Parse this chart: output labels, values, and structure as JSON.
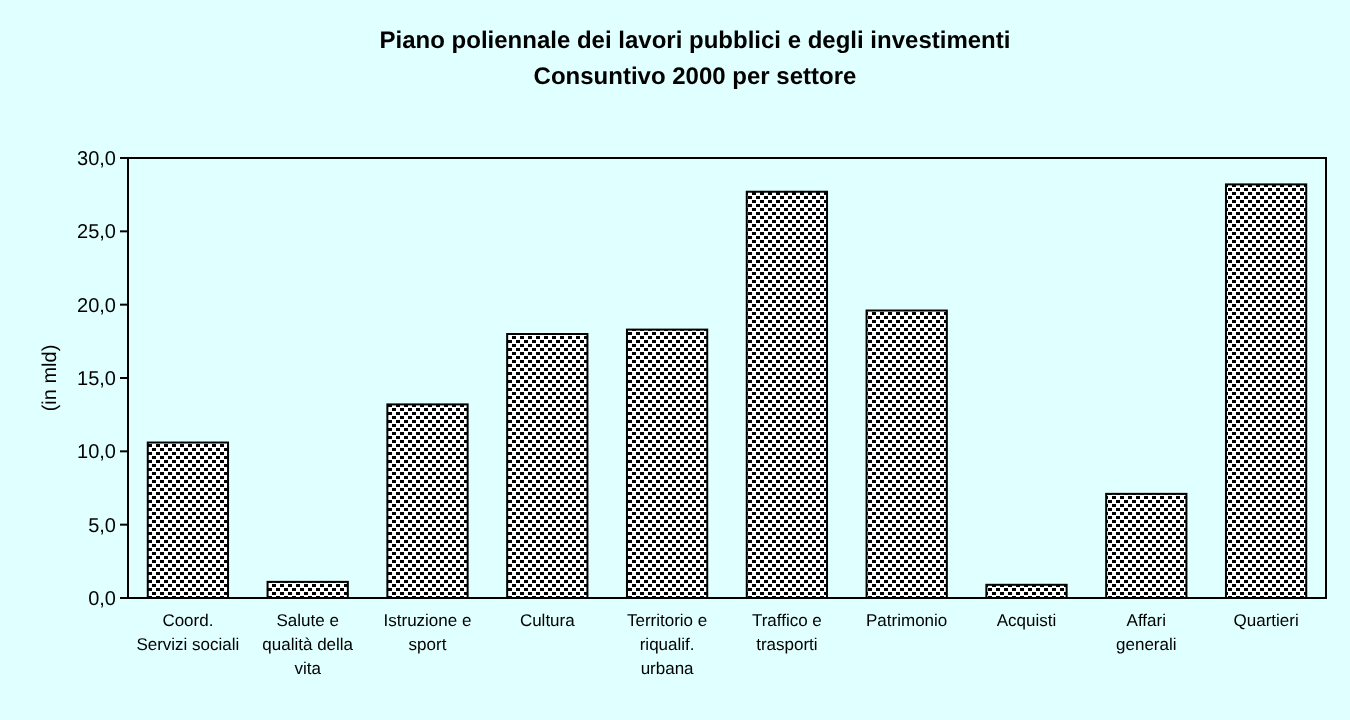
{
  "chart_data": {
    "type": "bar",
    "title": "Piano poliennale dei lavori pubblici e degli investimenti",
    "subtitle": "Consuntivo 2000 per settore",
    "ylabel": "(in mld)",
    "categories": [
      "Coord.\nServizi sociali",
      "Salute e\nqualità della\nvita",
      "Istruzione e\nsport",
      "Cultura",
      "Territorio e\nriqualif.\nurbana",
      "Traffico e\ntrasporti",
      "Patrimonio",
      "Acquisti",
      "Affari\ngenerali",
      "Quartieri"
    ],
    "values": [
      10.6,
      1.1,
      13.2,
      18.0,
      18.3,
      27.7,
      19.6,
      0.9,
      7.1,
      28.2
    ],
    "color": "#000000",
    "ylim": [
      0,
      30
    ],
    "yticks": [
      {
        "value": 0,
        "label": "0,0"
      },
      {
        "value": 5,
        "label": "5,0"
      },
      {
        "value": 10,
        "label": "10,0"
      },
      {
        "value": 15,
        "label": "15,0"
      },
      {
        "value": 20,
        "label": "20,0"
      },
      {
        "value": 25,
        "label": "25,0"
      },
      {
        "value": 30,
        "label": "30,0"
      }
    ],
    "grid": false
  }
}
